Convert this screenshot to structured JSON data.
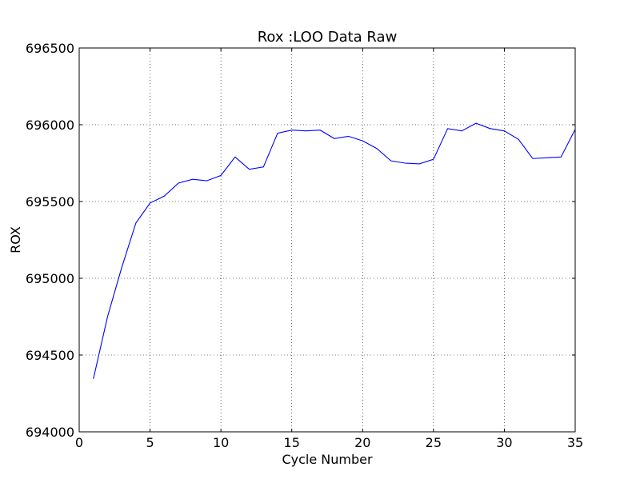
{
  "chart_data": {
    "type": "line",
    "title": "Rox :LOO Data Raw",
    "xlabel": "Cycle Number",
    "ylabel": "ROX",
    "xlim": [
      0,
      35
    ],
    "ylim": [
      694000,
      696500
    ],
    "xticks": [
      0,
      5,
      10,
      15,
      20,
      25,
      30,
      35
    ],
    "yticks": [
      694000,
      694500,
      695000,
      695500,
      696000,
      696500
    ],
    "grid": true,
    "series": [
      {
        "color": "#0000ff",
        "x": [
          1,
          2,
          3,
          4,
          5,
          6,
          7,
          8,
          9,
          10,
          11,
          12,
          13,
          14,
          15,
          16,
          17,
          18,
          19,
          20,
          21,
          22,
          23,
          24,
          25,
          26,
          27,
          28,
          29,
          30,
          31,
          32,
          33,
          34,
          35
        ],
        "y": [
          694345,
          694750,
          695070,
          695360,
          695490,
          695535,
          695620,
          695645,
          695635,
          695670,
          695790,
          695710,
          695725,
          695945,
          695965,
          695960,
          695965,
          695910,
          695925,
          695895,
          695845,
          695765,
          695750,
          695745,
          695775,
          695975,
          695960,
          696010,
          695975,
          695960,
          695905,
          695780,
          695785,
          695790,
          695970
        ]
      }
    ]
  }
}
